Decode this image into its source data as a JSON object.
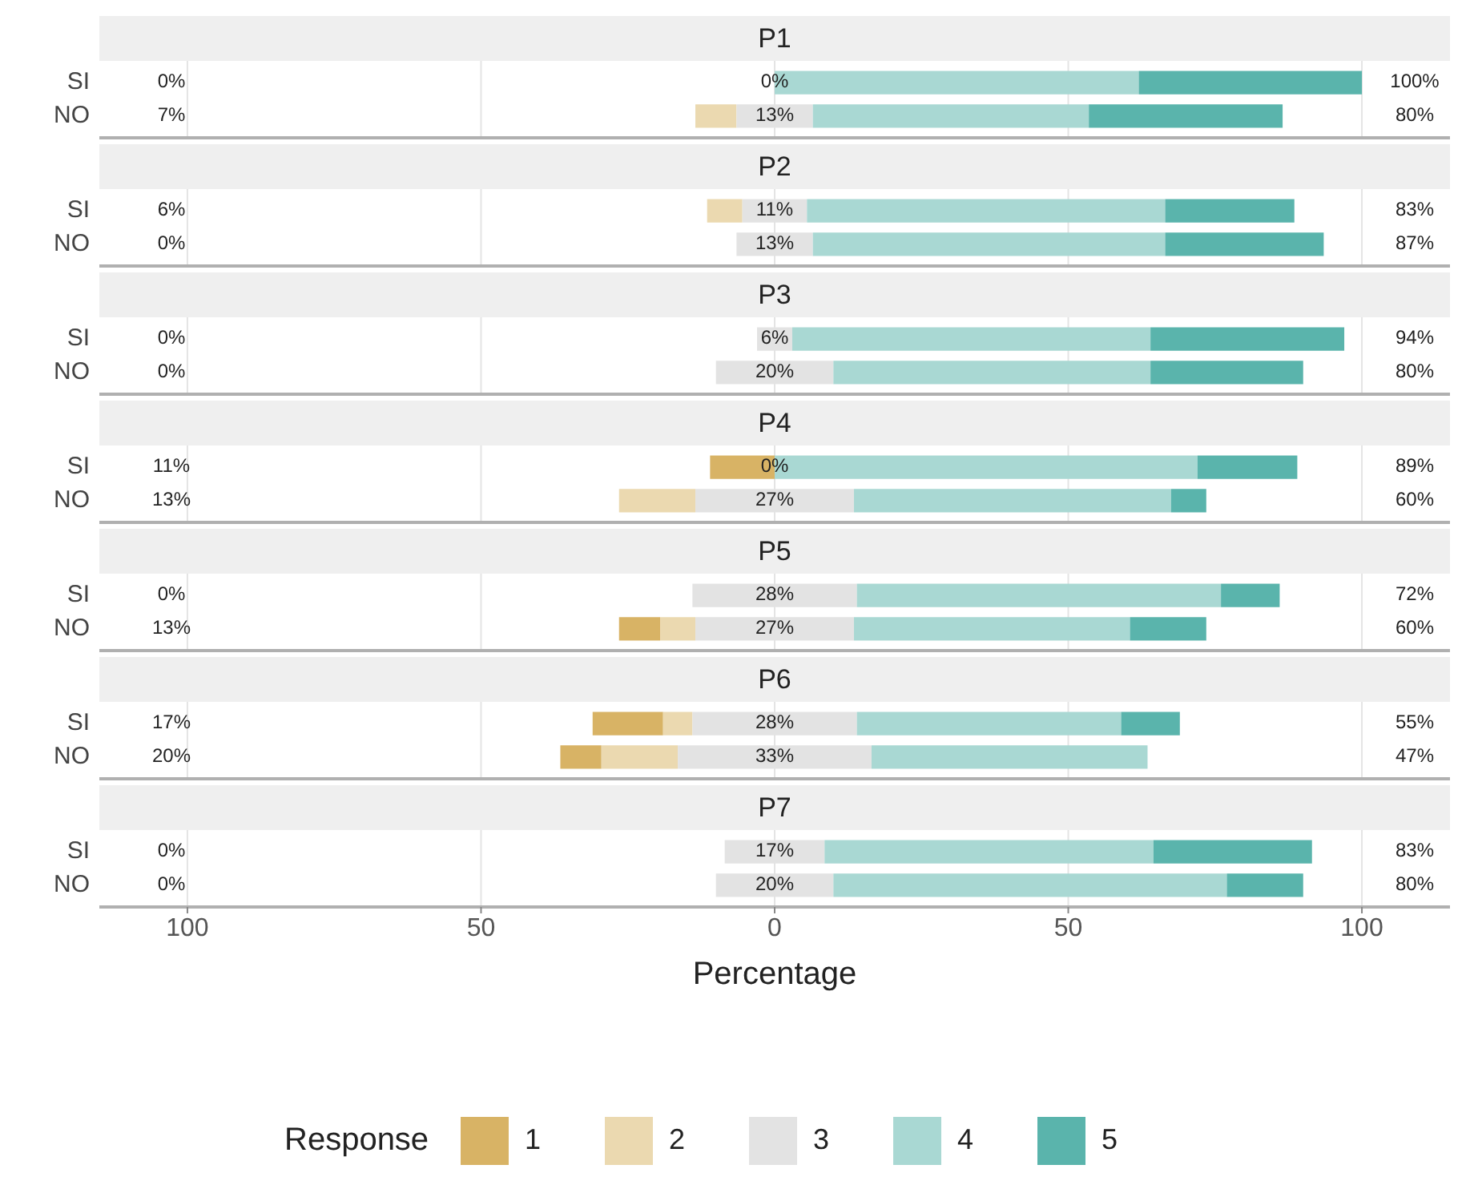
{
  "chart_data": [
    {
      "type": "bar",
      "orientation": "horizontal",
      "title": "P1",
      "categories": [
        "SI",
        "NO"
      ],
      "xlim": [
        -115,
        115
      ],
      "grid": "x",
      "tick_labels": "y",
      "series": [
        {
          "color": "#ebd9b0",
          "base": [
            null,
            -13.5
          ],
          "values": [
            0,
            7
          ]
        },
        {
          "color": "#e3e3e3",
          "base": [
            null,
            -6.5
          ],
          "values": [
            0,
            13
          ]
        },
        {
          "color": "#a9d8d3",
          "base": [
            0,
            6.5
          ],
          "values": [
            62,
            47
          ]
        },
        {
          "color": "#5ab4ac",
          "base": [
            62,
            53.5
          ],
          "values": [
            38,
            33
          ]
        }
      ],
      "annotations": [
        "0%",
        "0%",
        "100%",
        "7%",
        "13%",
        "80%"
      ]
    },
    {
      "type": "bar",
      "orientation": "horizontal",
      "title": "P2",
      "categories": [
        "SI",
        "NO"
      ],
      "xlim": [
        -115,
        115
      ],
      "grid": "x",
      "tick_labels": "y",
      "series": [
        {
          "color": "#ebd9b0",
          "base": [
            -11.5,
            null
          ],
          "values": [
            6,
            0
          ]
        },
        {
          "color": "#e3e3e3",
          "base": [
            -5.5,
            -6.5
          ],
          "values": [
            11,
            13
          ]
        },
        {
          "color": "#a9d8d3",
          "base": [
            5.5,
            6.5
          ],
          "values": [
            61,
            60
          ]
        },
        {
          "color": "#5ab4ac",
          "base": [
            66.5,
            66.5
          ],
          "values": [
            22,
            27
          ]
        }
      ],
      "annotations": [
        "6%",
        "11%",
        "83%",
        "0%",
        "13%",
        "87%"
      ]
    },
    {
      "type": "bar",
      "orientation": "horizontal",
      "title": "P3",
      "categories": [
        "SI",
        "NO"
      ],
      "xlim": [
        -115,
        115
      ],
      "grid": "x",
      "tick_labels": "y",
      "series": [
        {
          "color": "#e3e3e3",
          "base": [
            -3,
            -10
          ],
          "values": [
            6,
            20
          ]
        },
        {
          "color": "#a9d8d3",
          "base": [
            3,
            10
          ],
          "values": [
            61,
            54
          ]
        },
        {
          "color": "#5ab4ac",
          "base": [
            64,
            64
          ],
          "values": [
            33,
            26
          ]
        }
      ],
      "annotations": [
        "0%",
        "6%",
        "94%",
        "0%",
        "20%",
        "80%"
      ]
    },
    {
      "type": "bar",
      "orientation": "horizontal",
      "title": "P4",
      "categories": [
        "SI",
        "NO"
      ],
      "xlim": [
        -115,
        115
      ],
      "grid": "x",
      "tick_labels": "y",
      "series": [
        {
          "color": "#d8b365",
          "base": [
            -11,
            null
          ],
          "values": [
            11,
            0
          ]
        },
        {
          "color": "#ebd9b0",
          "base": [
            null,
            -26.5
          ],
          "values": [
            0,
            13
          ]
        },
        {
          "color": "#e3e3e3",
          "base": [
            null,
            -13.5
          ],
          "values": [
            0,
            27
          ]
        },
        {
          "color": "#a9d8d3",
          "base": [
            0,
            13.5
          ],
          "values": [
            72,
            54
          ]
        },
        {
          "color": "#5ab4ac",
          "base": [
            72,
            67.5
          ],
          "values": [
            17,
            6
          ]
        }
      ],
      "annotations": [
        "11%",
        "0%",
        "89%",
        "13%",
        "27%",
        "60%"
      ]
    },
    {
      "type": "bar",
      "orientation": "horizontal",
      "title": "P5",
      "categories": [
        "SI",
        "NO"
      ],
      "xlim": [
        -115,
        115
      ],
      "grid": "x",
      "tick_labels": "y",
      "series": [
        {
          "color": "#d8b365",
          "base": [
            null,
            -26.5
          ],
          "values": [
            0,
            7
          ]
        },
        {
          "color": "#ebd9b0",
          "base": [
            null,
            -19.5
          ],
          "values": [
            0,
            6
          ]
        },
        {
          "color": "#e3e3e3",
          "base": [
            -14,
            -13.5
          ],
          "values": [
            28,
            27
          ]
        },
        {
          "color": "#a9d8d3",
          "base": [
            14,
            13.5
          ],
          "values": [
            62,
            47
          ]
        },
        {
          "color": "#5ab4ac",
          "base": [
            76,
            60.5
          ],
          "values": [
            10,
            13
          ]
        }
      ],
      "annotations": [
        "0%",
        "28%",
        "72%",
        "13%",
        "27%",
        "60%"
      ]
    },
    {
      "type": "bar",
      "orientation": "horizontal",
      "title": "P6",
      "categories": [
        "SI",
        "NO"
      ],
      "xlim": [
        -115,
        115
      ],
      "grid": "x",
      "tick_labels": "y",
      "series": [
        {
          "color": "#d8b365",
          "base": [
            -31,
            -36.5
          ],
          "values": [
            12,
            7
          ]
        },
        {
          "color": "#ebd9b0",
          "base": [
            -19,
            -29.5
          ],
          "values": [
            5,
            13
          ]
        },
        {
          "color": "#e3e3e3",
          "base": [
            -14,
            -16.5
          ],
          "values": [
            28,
            33
          ]
        },
        {
          "color": "#a9d8d3",
          "base": [
            14,
            16.5
          ],
          "values": [
            45,
            47
          ]
        },
        {
          "color": "#5ab4ac",
          "base": [
            59,
            null
          ],
          "values": [
            10,
            0
          ]
        }
      ],
      "annotations": [
        "17%",
        "28%",
        "55%",
        "20%",
        "33%",
        "47%"
      ]
    },
    {
      "type": "bar",
      "orientation": "horizontal",
      "title": "P7",
      "categories": [
        "SI",
        "NO"
      ],
      "xlim": [
        -115,
        115
      ],
      "xticks": [
        {
          "value": -100,
          "label": "100"
        },
        {
          "value": -50,
          "label": "50"
        },
        0,
        50,
        100
      ],
      "grid": "x",
      "xlabel": "Percentage",
      "legend": "bottom",
      "legend_title": "Response",
      "series": [
        {
          "name": "1",
          "color": "#d8b365",
          "base": [
            null,
            null
          ],
          "values": [
            0,
            0
          ]
        },
        {
          "name": "2",
          "color": "#ebd9b0",
          "base": [
            null,
            null
          ],
          "values": [
            0,
            0
          ]
        },
        {
          "name": "3",
          "color": "#e3e3e3",
          "base": [
            -8.5,
            -10
          ],
          "values": [
            17,
            20
          ]
        },
        {
          "name": "4",
          "color": "#a9d8d3",
          "base": [
            8.5,
            10
          ],
          "values": [
            56,
            67
          ]
        },
        {
          "name": "5",
          "color": "#5ab4ac",
          "base": [
            64.5,
            77
          ],
          "values": [
            27,
            13
          ]
        }
      ],
      "annotations": [
        "0%",
        "17%",
        "83%",
        "0%",
        "20%",
        "80%"
      ]
    }
  ]
}
